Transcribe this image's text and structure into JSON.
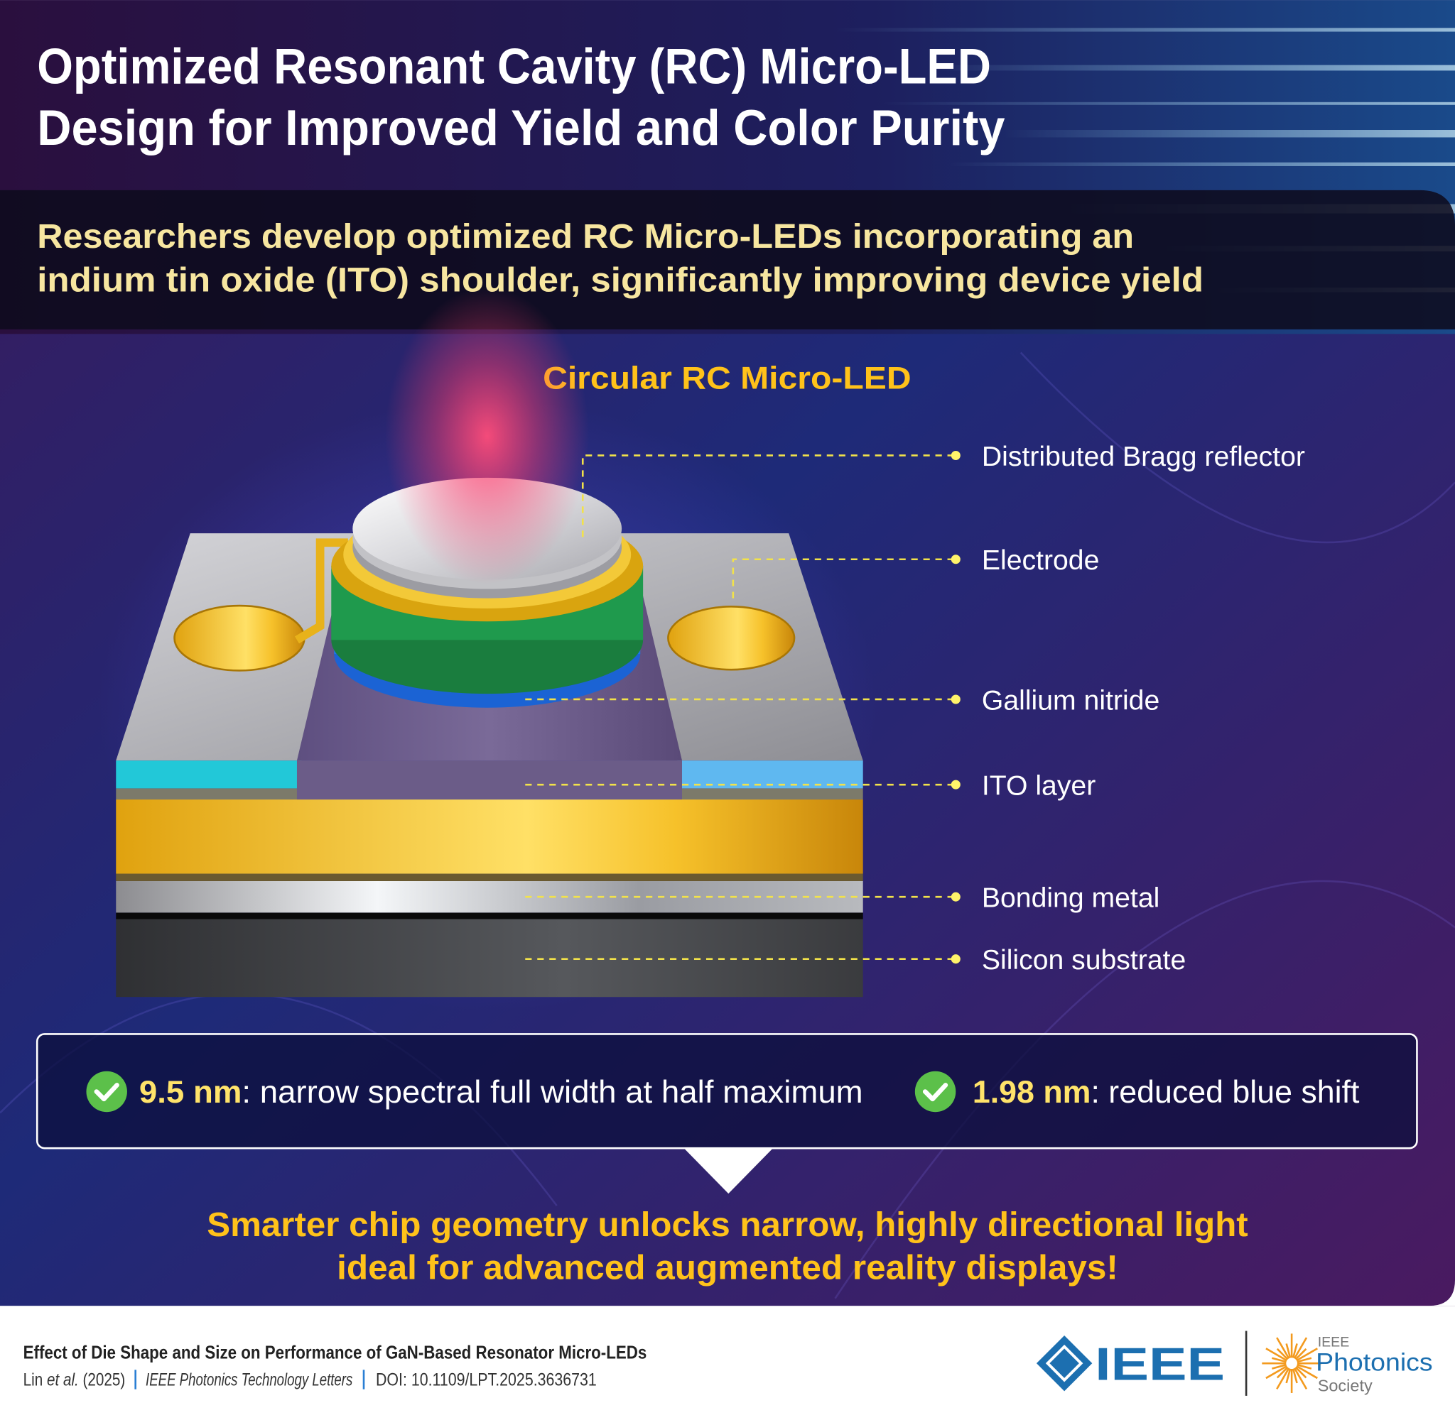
{
  "header": {
    "title_lines": [
      "Optimized Resonant Cavity (RC) Micro-LED",
      "Design for Improved Yield and Color Purity"
    ],
    "subtitle_lines": [
      "Researchers develop optimized RC Micro-LEDs incorporating an",
      "indium tin oxide (ITO) shoulder, significantly improving device yield"
    ]
  },
  "diagram": {
    "title": "Circular RC Micro-LED",
    "labels": [
      "Distributed Bragg reflector",
      "Electrode",
      "Gallium nitride",
      "ITO layer",
      "Bonding metal",
      "Silicon substrate"
    ]
  },
  "stats": [
    {
      "value": "9.5 nm",
      "text": ": narrow spectral full width at half maximum"
    },
    {
      "value": "1.98 nm",
      "text": ": reduced blue shift"
    }
  ],
  "conclusion_lines": [
    "Smarter chip geometry unlocks narrow, highly directional light",
    "ideal for advanced augmented reality displays!"
  ],
  "footer": {
    "paper_title": "Effect of Die Shape and Size on Performance of GaN-Based Resonator Micro-LEDs",
    "author": "Lin",
    "et_al": "et al.",
    "year": "(2025)",
    "journal": "IEEE Photonics Technology Letters",
    "doi": "DOI:  10.1109/LPT.2025.3636731",
    "ieee_logo": "IEEE",
    "society_logo": [
      "IEEE",
      "Photonics",
      "Society"
    ]
  }
}
